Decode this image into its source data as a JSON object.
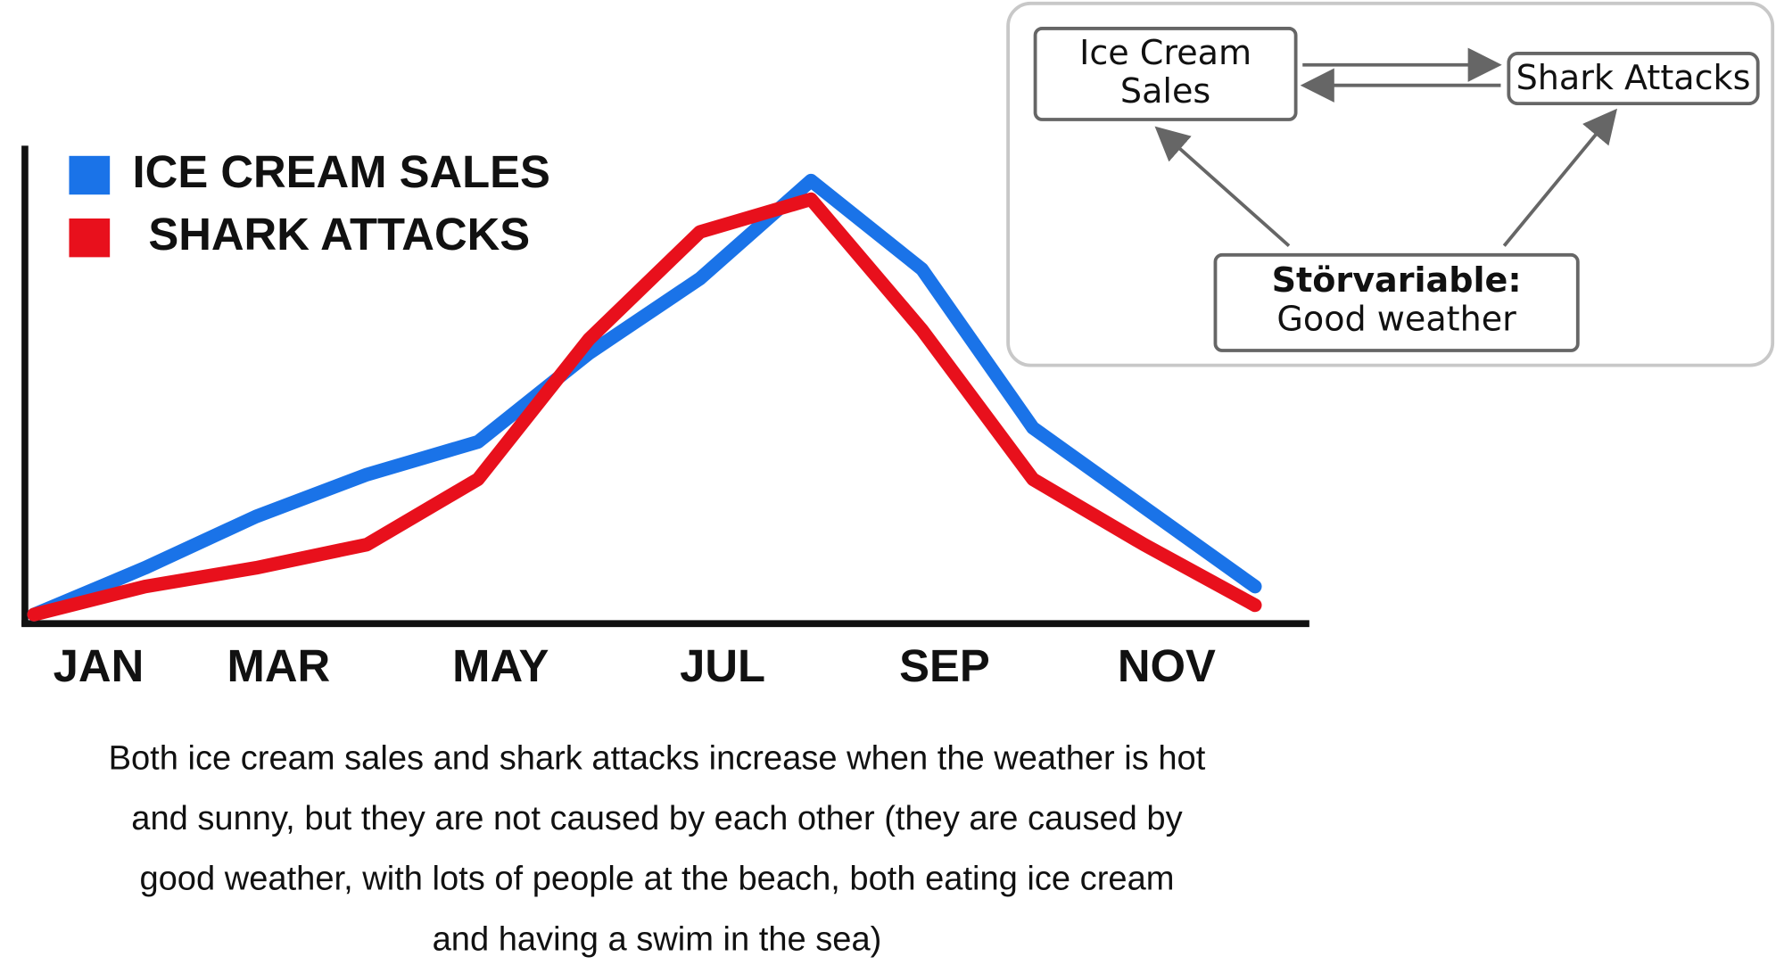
{
  "chart_data": {
    "type": "line",
    "categories": [
      "JAN",
      null,
      "MAR",
      null,
      "MAY",
      null,
      "JUL",
      null,
      "SEP",
      null,
      "NOV",
      null
    ],
    "series": [
      {
        "name": "ICE CREAM SALES",
        "color": "#1a73e8",
        "values": [
          0,
          10,
          21,
          30,
          37,
          56,
          72,
          93,
          74,
          40,
          23,
          6
        ]
      },
      {
        "name": "SHARK ATTACKS",
        "color": "#e8101c",
        "values": [
          0,
          6,
          10,
          15,
          29,
          59,
          82,
          89,
          61,
          29,
          15,
          2
        ]
      }
    ],
    "ylim": [
      0,
      100
    ],
    "legend": "top-left",
    "caption": [
      "Both ice cream sales and shark attacks increase when the weather is hot",
      "and sunny, but they are not caused by each other (they are caused by",
      "good weather, with lots of people at the beach, both eating ice cream",
      "and having a swim in the sea)"
    ]
  },
  "diagram": {
    "nodes": [
      {
        "label": [
          "Ice Cream",
          "Sales"
        ]
      },
      {
        "label": [
          "Shark Attacks"
        ]
      },
      {
        "label": [
          "Störvariable:",
          "Good weather"
        ]
      }
    ]
  }
}
